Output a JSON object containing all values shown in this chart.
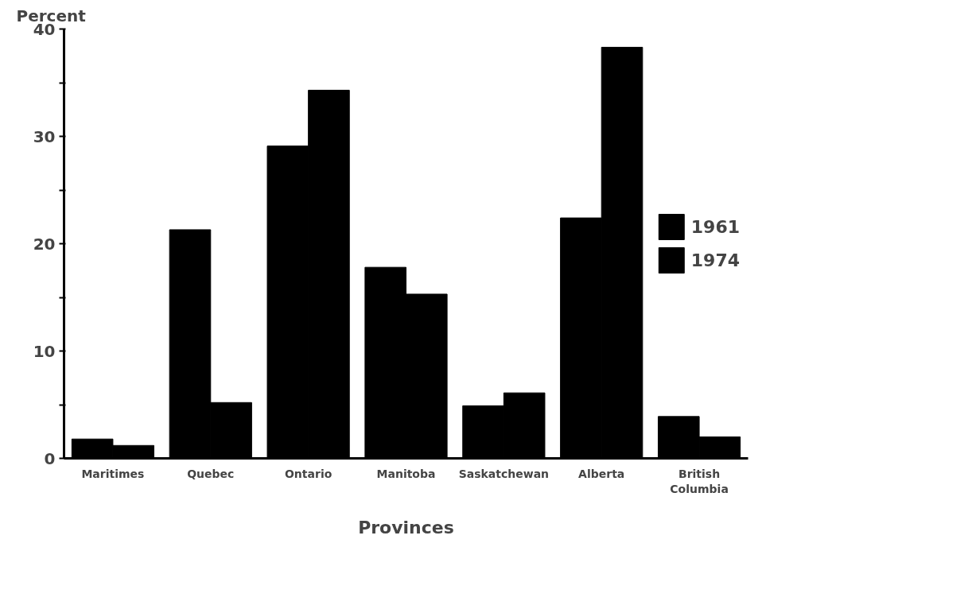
{
  "chart_data": {
    "type": "bar",
    "xlabel": "Provinces",
    "ylabel": "Percent",
    "categories": [
      "Maritimes",
      "Quebec",
      "Ontario",
      "Manitoba",
      "Saskatchewan",
      "Alberta",
      "British Columbia"
    ],
    "series": [
      {
        "name": "1961",
        "color": "#000000",
        "values": [
          1.8,
          21.3,
          29.1,
          17.8,
          4.9,
          22.4,
          3.9
        ]
      },
      {
        "name": "1974",
        "color": "#000000",
        "values": [
          1.2,
          5.2,
          34.3,
          15.3,
          6.1,
          38.3,
          2.0
        ]
      }
    ],
    "ylim": [
      0,
      40
    ],
    "yticks": [
      0,
      {
        "value": 5,
        "label": null
      },
      10,
      {
        "value": 15,
        "label": null
      },
      20,
      {
        "value": 25,
        "label": null
      },
      30,
      {
        "value": 35,
        "label": null
      },
      40
    ],
    "grid": false,
    "legend": "right"
  }
}
